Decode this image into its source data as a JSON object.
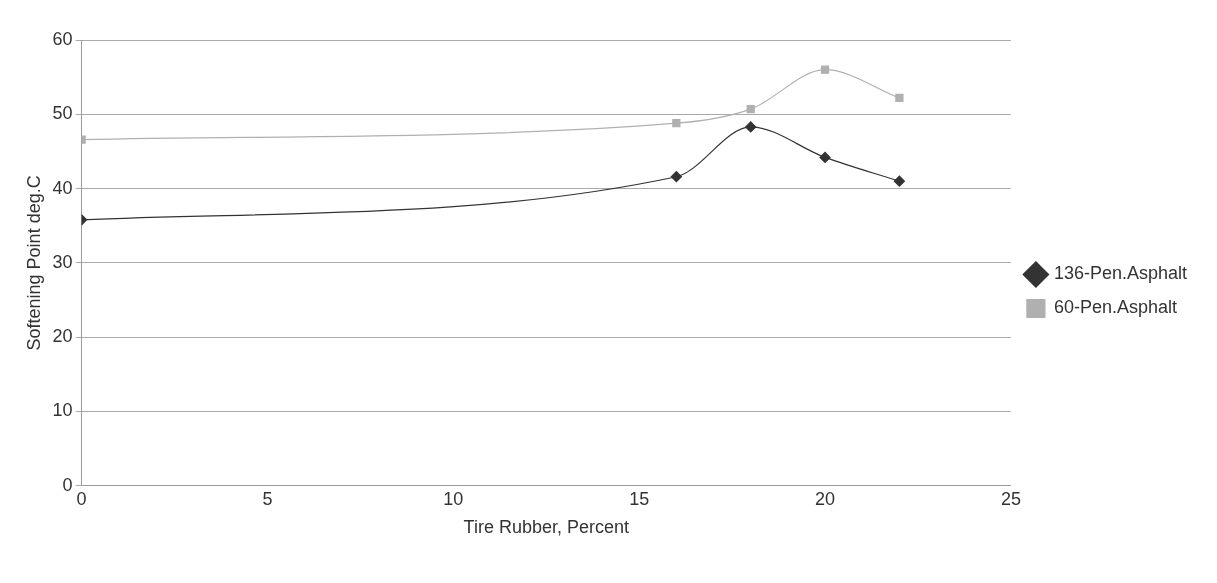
{
  "chart_data": {
    "type": "line",
    "xlabel": "Tire Rubber, Percent",
    "ylabel": "Softening Point deg.C",
    "x": [
      0,
      16,
      18,
      20,
      22
    ],
    "series": [
      {
        "name": "136-Pen.Asphalt",
        "color": "#333333",
        "marker": "diamond",
        "values": [
          35.8,
          41.6,
          48.3,
          44.2,
          41
        ]
      },
      {
        "name": "60-Pen.Asphalt",
        "color": "#b0b0b0",
        "marker": "square",
        "values": [
          46.6,
          48.8,
          50.7,
          56,
          52.2
        ]
      }
    ],
    "xlim": [
      0,
      25
    ],
    "xticks": [
      0,
      5,
      10,
      15,
      20,
      25
    ],
    "ylim": [
      0,
      60
    ],
    "yticks": [
      0,
      10,
      20,
      30,
      40,
      50,
      60
    ],
    "grid": "y",
    "legend": "right"
  }
}
